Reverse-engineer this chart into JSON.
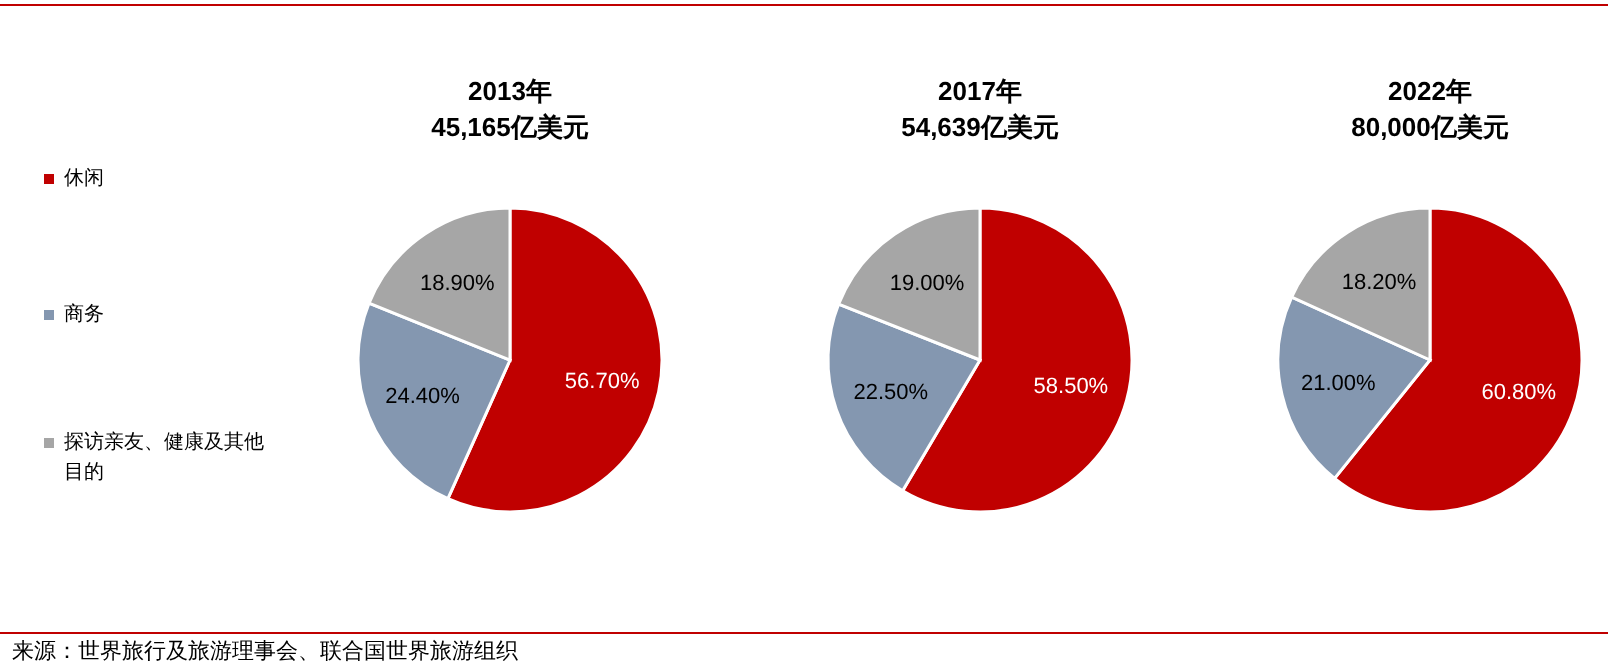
{
  "chart_data": [
    {
      "type": "pie",
      "title": "2013年",
      "subtitle": "45,165亿美元",
      "categories": [
        "休闲",
        "商务",
        "探访亲友、健康及其他目的"
      ],
      "values": [
        56.7,
        24.4,
        18.9
      ],
      "colors": [
        "#c00000",
        "#8497b0",
        "#a6a6a6"
      ],
      "value_labels": [
        "56.70%",
        "24.40%",
        "18.90%"
      ],
      "legend": "left",
      "annotations": [
        "来源：世界旅行及旅游理事会、联合国世界旅游组织"
      ]
    },
    {
      "type": "pie",
      "title": "2017年",
      "subtitle": "54,639亿美元",
      "categories": [
        null,
        null,
        null
      ],
      "values": [
        58.5,
        22.5,
        19.0
      ],
      "colors": [
        "#c00000",
        "#8497b0",
        "#a6a6a6"
      ],
      "value_labels": [
        "58.50%",
        "22.50%",
        "19.00%"
      ]
    },
    {
      "type": "pie",
      "title": "2022年",
      "subtitle": "80,000亿美元",
      "categories": [
        null,
        null,
        null
      ],
      "values": [
        60.8,
        21.0,
        18.2
      ],
      "colors": [
        "#c00000",
        "#8497b0",
        "#a6a6a6"
      ],
      "value_labels": [
        "60.80%",
        "21.00%",
        "18.20%"
      ]
    }
  ]
}
